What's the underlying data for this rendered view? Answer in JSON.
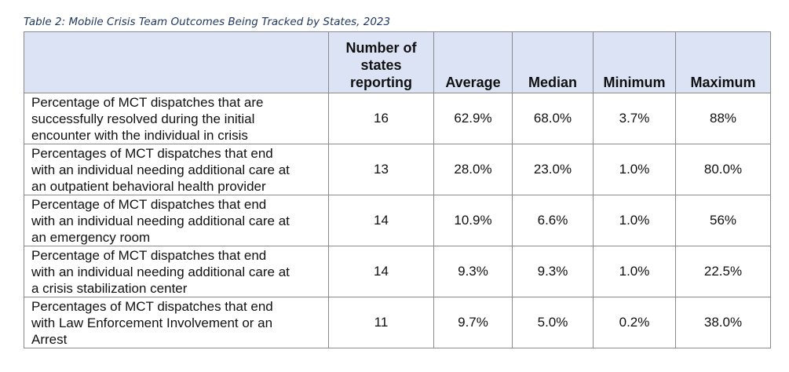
{
  "caption": "Table 2: Mobile Crisis Team Outcomes Being Tracked by States, 2023",
  "columns": [
    "",
    "Number of states reporting",
    "Average",
    "Median",
    "Minimum",
    "Maximum"
  ],
  "header_lines": {
    "states": [
      "Number of",
      "states",
      "reporting"
    ]
  },
  "rows": [
    {
      "label_lines": [
        "Percentage of MCT dispatches that are",
        "successfully resolved during the initial",
        "encounter with the individual in crisis"
      ],
      "states": "16",
      "average": "62.9%",
      "median": "68.0%",
      "minimum": "3.7%",
      "maximum": "88%"
    },
    {
      "label_lines": [
        "Percentages of MCT dispatches that end",
        "with an individual needing additional care at",
        "an outpatient behavioral health provider"
      ],
      "states": "13",
      "average": "28.0%",
      "median": "23.0%",
      "minimum": "1.0%",
      "maximum": "80.0%"
    },
    {
      "label_lines": [
        "Percentage of MCT dispatches that end",
        "with an individual needing additional care at",
        "an emergency room"
      ],
      "states": "14",
      "average": "10.9%",
      "median": "6.6%",
      "minimum": "1.0%",
      "maximum": "56%"
    },
    {
      "label_lines": [
        "Percentage of MCT dispatches that end",
        "with an individual needing additional care at",
        "a crisis stabilization center"
      ],
      "states": "14",
      "average": "9.3%",
      "median": "9.3%",
      "minimum": "1.0%",
      "maximum": "22.5%"
    },
    {
      "label_lines": [
        "Percentages of MCT dispatches that end",
        "with Law Enforcement Involvement or an",
        "Arrest"
      ],
      "states": "11",
      "average": "9.7%",
      "median": "5.0%",
      "minimum": "0.2%",
      "maximum": "38.0%"
    }
  ]
}
